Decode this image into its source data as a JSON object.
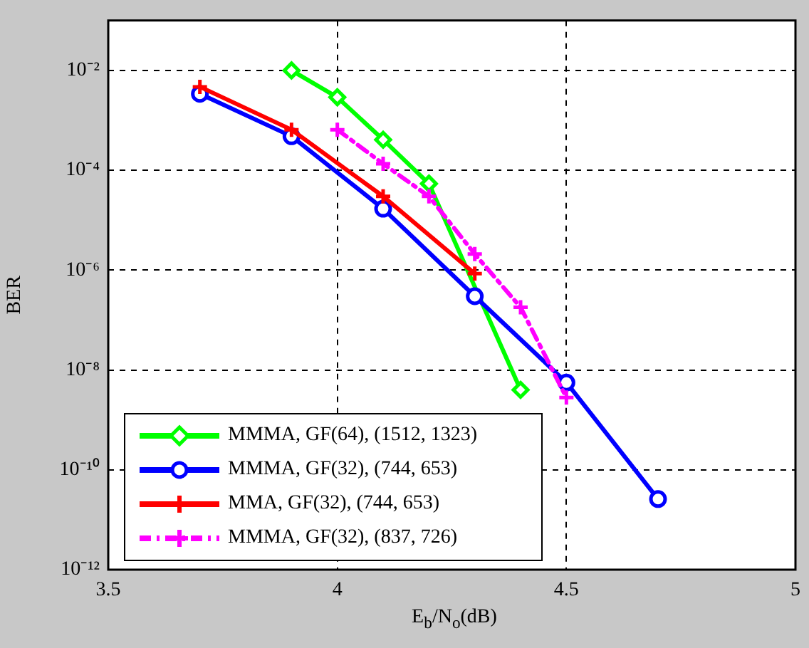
{
  "chart_data": {
    "type": "line",
    "xlabel": "E$_{b}$/N$_{o}$(dB)",
    "ylabel": "BER",
    "log": "y",
    "grid": true,
    "legend": "bottom left",
    "xlim": [
      3.5,
      5
    ],
    "xticks": [
      3.5,
      4,
      4.5,
      5
    ],
    "ylim": [
      1e-12,
      0.1
    ],
    "yticks": [
      {
        "value": 0.01,
        "label": "10⁻²"
      },
      {
        "value": 0.0001,
        "label": "10⁻⁴"
      },
      {
        "value": 1e-06,
        "label": "10⁻⁶"
      },
      {
        "value": 1e-08,
        "label": "10⁻⁸"
      },
      {
        "value": 1e-10,
        "label": "10⁻¹⁰"
      },
      {
        "value": 1e-12,
        "label": "10⁻¹²"
      }
    ],
    "series": [
      {
        "name": "MMMA, GF(64), (1512, 1323)",
        "color": "#00ff00",
        "marker": "diamond",
        "line_style": "solid",
        "x": [
          3.9,
          4.0,
          4.1,
          4.2,
          4.4
        ],
        "values": [
          0.01,
          0.0029,
          0.00041,
          5.4e-05,
          4e-09
        ]
      },
      {
        "name": "MMMA, GF(32), (744, 653)",
        "color": "#0000ff",
        "marker": "circle",
        "line_style": "solid",
        "x": [
          3.7,
          3.9,
          4.1,
          4.3,
          4.5,
          4.7
        ],
        "values": [
          0.0034,
          0.00048,
          1.7e-05,
          3e-07,
          5.6e-09,
          2.6e-11
        ]
      },
      {
        "name": "MMA, GF(32), (744, 653)",
        "color": "#ff0000",
        "marker": "cross",
        "line_style": "solid",
        "x": [
          3.7,
          3.9,
          4.1,
          4.3
        ],
        "values": [
          0.0047,
          0.00065,
          3e-05,
          8.5e-07
        ]
      },
      {
        "name": "MMMA, GF(32), (837, 726)",
        "color": "#ff00ff",
        "marker": "cross",
        "line_style": "dashed",
        "x": [
          4.0,
          4.1,
          4.2,
          4.3,
          4.4,
          4.5
        ],
        "values": [
          0.00065,
          0.000135,
          3e-05,
          2.1e-06,
          1.8e-07,
          2.8e-09
        ]
      }
    ]
  }
}
